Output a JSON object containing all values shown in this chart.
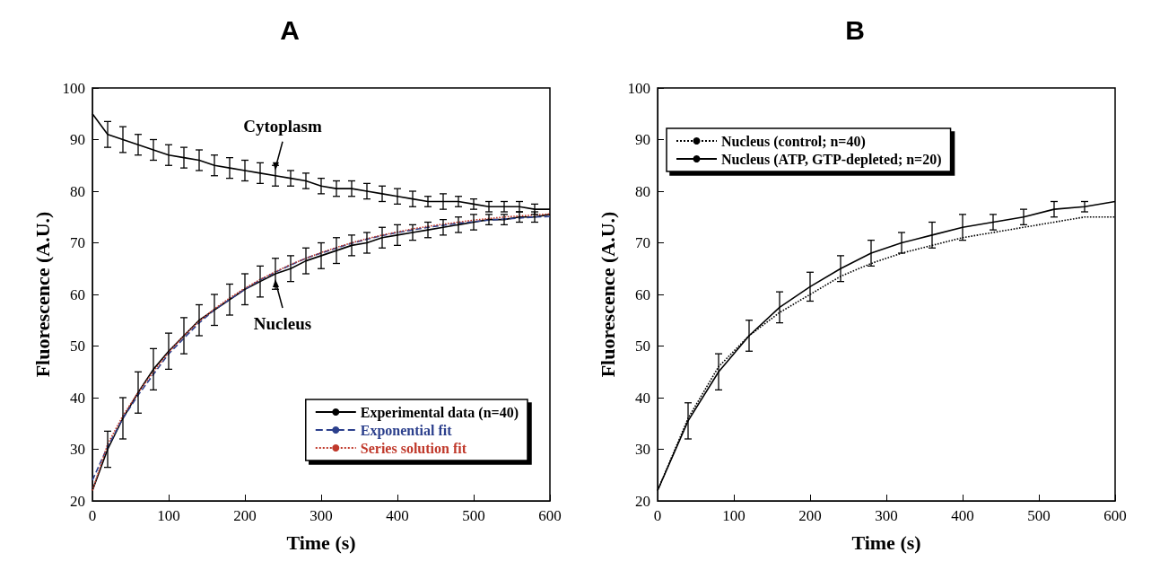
{
  "chart_data": [
    {
      "type": "line",
      "title": "A",
      "xlabel": "Time (s)",
      "ylabel": "Fluorescence (A.U.)",
      "xlim": [
        0,
        600
      ],
      "xticks": [
        0,
        100,
        200,
        300,
        400,
        500,
        600
      ],
      "ylim": [
        20,
        100
      ],
      "yticks": [
        20,
        30,
        40,
        50,
        60,
        70,
        80,
        90,
        100
      ],
      "grid": false,
      "legend": "bottom right",
      "marker": "none",
      "annotations": [
        {
          "text": "Cytoplasm",
          "x": 240,
          "y": 83
        },
        {
          "text": "Nucleus",
          "x": 240,
          "y": 64
        }
      ],
      "series": [
        {
          "color": "#000000",
          "line_style": "solid",
          "x": [
            0,
            20,
            40,
            60,
            80,
            100,
            120,
            140,
            160,
            180,
            200,
            220,
            240,
            260,
            280,
            300,
            320,
            340,
            360,
            380,
            400,
            420,
            440,
            460,
            480,
            500,
            520,
            540,
            560,
            580,
            600
          ],
          "values": [
            95,
            91,
            90,
            89,
            88,
            87,
            86.5,
            86,
            85,
            84.5,
            84,
            83.5,
            83,
            82.5,
            82,
            81,
            80.5,
            80.5,
            80,
            79.5,
            79,
            78.5,
            78,
            78,
            78,
            77.5,
            77,
            77,
            77,
            76.5,
            76.5
          ],
          "errors": [
            null,
            2.5,
            2.5,
            2,
            2,
            2,
            2,
            2,
            2,
            2,
            2,
            2,
            2,
            1.5,
            1.5,
            1.5,
            1.5,
            1.5,
            1.5,
            1.5,
            1.5,
            1.5,
            1,
            1.5,
            1,
            1,
            1,
            1,
            1,
            1,
            null
          ]
        },
        {
          "name": "Experimental data (n=40)",
          "color": "#000000",
          "line_style": "solid",
          "x": [
            0,
            20,
            40,
            60,
            80,
            100,
            120,
            140,
            160,
            180,
            200,
            220,
            240,
            260,
            280,
            300,
            320,
            340,
            360,
            380,
            400,
            420,
            440,
            460,
            480,
            500,
            520,
            540,
            560,
            580,
            600
          ],
          "values": [
            22,
            30,
            36,
            41,
            45.5,
            49,
            52,
            55,
            57,
            59,
            61,
            62.5,
            64,
            65,
            66.5,
            67.5,
            68.5,
            69.5,
            70,
            71,
            71.5,
            72,
            72.5,
            73,
            73.5,
            74,
            74.5,
            74.5,
            75,
            75,
            75.5
          ],
          "errors": [
            null,
            3.5,
            4,
            4,
            4,
            3.5,
            3.5,
            3,
            3,
            3,
            3,
            3,
            3,
            2.5,
            2.5,
            2.5,
            2.5,
            2,
            2,
            2,
            2,
            1.5,
            1.5,
            1.5,
            1.5,
            1.5,
            1,
            1,
            1,
            1,
            null
          ]
        },
        {
          "name": "Exponential fit",
          "color": "#2b3f8c",
          "line_style": "dashed",
          "x": [
            0,
            20,
            40,
            60,
            80,
            100,
            120,
            140,
            160,
            180,
            200,
            220,
            240,
            260,
            280,
            300,
            320,
            340,
            360,
            380,
            400,
            420,
            440,
            460,
            480,
            500,
            520,
            540,
            560,
            580,
            600
          ],
          "values": [
            24,
            30.5,
            36,
            40.5,
            44.5,
            48.5,
            51.5,
            54.5,
            57,
            59,
            61,
            62.8,
            64.3,
            65.7,
            67,
            68,
            69,
            69.9,
            70.7,
            71.4,
            72,
            72.5,
            73,
            73.4,
            73.8,
            74.1,
            74.4,
            74.6,
            74.8,
            75,
            75.1
          ]
        },
        {
          "name": "Series solution fit",
          "color": "#c0392b",
          "line_style": "dotted",
          "x": [
            0,
            20,
            40,
            60,
            80,
            100,
            120,
            140,
            160,
            180,
            200,
            220,
            240,
            260,
            280,
            300,
            320,
            340,
            360,
            380,
            400,
            420,
            440,
            460,
            480,
            500,
            520,
            540,
            560,
            580,
            600
          ],
          "values": [
            22,
            31,
            36.5,
            41,
            45,
            48.8,
            52,
            54.8,
            57.2,
            59.3,
            61.2,
            62.9,
            64.4,
            65.8,
            67,
            68.1,
            69.1,
            70,
            70.8,
            71.5,
            72.1,
            72.7,
            73.2,
            73.6,
            74,
            74.4,
            74.7,
            75,
            75.2,
            75.4,
            75.6
          ]
        }
      ]
    },
    {
      "type": "line",
      "title": "B",
      "xlabel": "Time (s)",
      "ylabel": "Fluorescence (A.U.)",
      "xlim": [
        0,
        600
      ],
      "xticks": [
        0,
        100,
        200,
        300,
        400,
        500,
        600
      ],
      "ylim": [
        20,
        100
      ],
      "yticks": [
        20,
        30,
        40,
        50,
        60,
        70,
        80,
        90,
        100
      ],
      "grid": false,
      "legend": "top left",
      "marker": "none",
      "series": [
        {
          "name": "Nucleus (control; n=40)",
          "color": "#000000",
          "line_style": "dotted",
          "x": [
            0,
            40,
            80,
            120,
            160,
            200,
            240,
            280,
            320,
            360,
            400,
            440,
            480,
            520,
            560,
            600
          ],
          "values": [
            22,
            36,
            46,
            52,
            56.5,
            60,
            63.5,
            66,
            68,
            69.5,
            71,
            72,
            73,
            74,
            75,
            75
          ]
        },
        {
          "name": "Nucleus (ATP, GTP-depleted; n=20)",
          "color": "#000000",
          "line_style": "solid",
          "x": [
            0,
            40,
            80,
            120,
            160,
            200,
            240,
            280,
            320,
            360,
            400,
            440,
            480,
            520,
            560,
            600
          ],
          "values": [
            22,
            35.5,
            45,
            52,
            57.5,
            61.5,
            65,
            68,
            70,
            71.5,
            73,
            74,
            75,
            76.5,
            77,
            78
          ],
          "errors": [
            null,
            3.5,
            3.5,
            3,
            3,
            2.8,
            2.5,
            2.5,
            2,
            2.5,
            2.5,
            1.5,
            1.5,
            1.5,
            1,
            null
          ]
        }
      ]
    }
  ]
}
